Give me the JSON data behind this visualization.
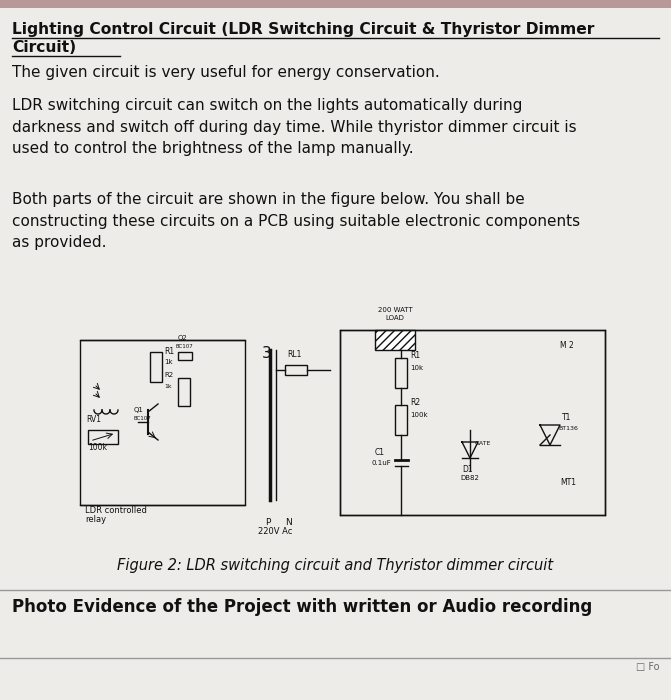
{
  "title_line1": "Lighting Control Circuit (LDR Switching Circuit & Thyristor Dimmer",
  "title_line2": "Circuit)",
  "para1": "The given circuit is very useful for energy conservation.",
  "para2": "LDR switching circuit can switch on the lights automatically during\ndarkness and switch off during day time. While thyristor dimmer circuit is\nused to control the brightness of the lamp manually.",
  "para3": "Both parts of the circuit are shown in the figure below. You shall be\nconstructing these circuits on a PCB using suitable electronic components\nas provided.",
  "figure_caption": "Figure 2: LDR switching circuit and Thyristor dimmer circuit",
  "footer": "Photo Evidence of the Project with written or Audio recording",
  "bg_color": "#eeece8",
  "text_color": "#111111",
  "top_bar_color": "#b89898",
  "circuit_bg": "#ffffff"
}
